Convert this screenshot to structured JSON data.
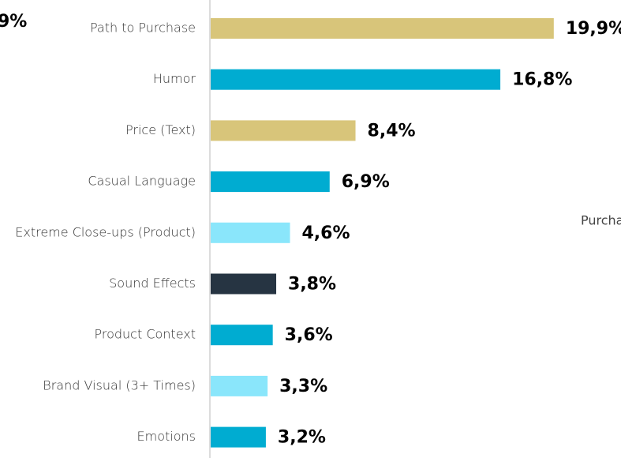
{
  "chart_data": {
    "type": "bar",
    "orientation": "horizontal",
    "categories": [
      "Path to Purchase",
      "Humor",
      "Price (Text)",
      "Casual Language",
      "Extreme Close-ups (Product)",
      "Sound Effects",
      "Product Context",
      "Brand Visual (3+ Times)",
      "Emotions"
    ],
    "values": [
      19.9,
      16.8,
      8.4,
      6.9,
      4.6,
      3.8,
      3.6,
      3.3,
      3.2
    ],
    "value_labels": [
      "19,9%",
      "16,8%",
      "8,4%",
      "6,9%",
      "4,6%",
      "3,8%",
      "3,6%",
      "3,3%",
      "3,2%"
    ],
    "colors": [
      "#d8c57a",
      "#00acd1",
      "#d8c57a",
      "#00acd1",
      "#8ae6fb",
      "#263442",
      "#00acd1",
      "#8ae6fb",
      "#00acd1"
    ],
    "xlim": [
      0,
      20
    ],
    "annotations": [
      "9%",
      "Purcha"
    ]
  }
}
